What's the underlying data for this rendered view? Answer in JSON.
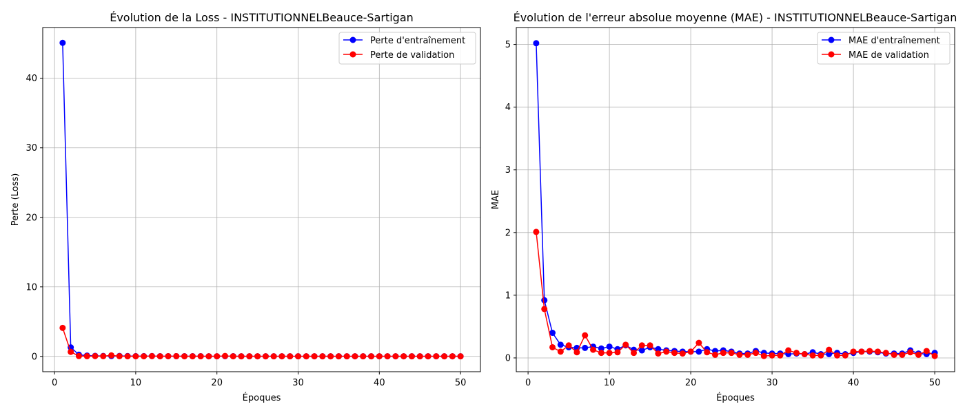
{
  "colors": {
    "train": "#0000ff",
    "val": "#ff0000",
    "grid": "#b0b0b0",
    "axis": "#000000"
  },
  "chart_data": [
    {
      "type": "line",
      "title": "Évolution de la Loss - INSTITUTIONNELBeauce-Sartigan",
      "xlabel": "Époques",
      "ylabel": "Perte (Loss)",
      "xlim": [
        -1.45,
        52.45
      ],
      "ylim": [
        -2.2,
        47.3
      ],
      "xticks": [
        0,
        10,
        20,
        30,
        40,
        50
      ],
      "yticks": [
        0,
        10,
        20,
        30,
        40
      ],
      "grid": true,
      "legend_position": "top-right",
      "x": [
        1,
        2,
        3,
        4,
        5,
        6,
        7,
        8,
        9,
        10,
        11,
        12,
        13,
        14,
        15,
        16,
        17,
        18,
        19,
        20,
        21,
        22,
        23,
        24,
        25,
        26,
        27,
        28,
        29,
        30,
        31,
        32,
        33,
        34,
        35,
        36,
        37,
        38,
        39,
        40,
        41,
        42,
        43,
        44,
        45,
        46,
        47,
        48,
        49,
        50
      ],
      "series": [
        {
          "name": "Perte d'entraînement",
          "color": "#0000ff",
          "values": [
            45.1,
            1.3,
            0.25,
            0.12,
            0.08,
            0.06,
            0.05,
            0.07,
            0.05,
            0.04,
            0.04,
            0.05,
            0.03,
            0.03,
            0.03,
            0.03,
            0.03,
            0.03,
            0.02,
            0.02,
            0.03,
            0.03,
            0.02,
            0.02,
            0.02,
            0.02,
            0.02,
            0.02,
            0.02,
            0.02,
            0.02,
            0.02,
            0.02,
            0.02,
            0.02,
            0.02,
            0.02,
            0.02,
            0.02,
            0.02,
            0.02,
            0.02,
            0.02,
            0.02,
            0.02,
            0.02,
            0.02,
            0.02,
            0.02,
            0.02
          ]
        },
        {
          "name": "Perte de validation",
          "color": "#ff0000",
          "values": [
            4.1,
            0.65,
            0.05,
            0.03,
            0.04,
            0.03,
            0.15,
            0.03,
            0.02,
            0.02,
            0.02,
            0.04,
            0.02,
            0.03,
            0.03,
            0.02,
            0.02,
            0.02,
            0.02,
            0.02,
            0.06,
            0.02,
            0.01,
            0.02,
            0.02,
            0.01,
            0.01,
            0.02,
            0.01,
            0.01,
            0.01,
            0.02,
            0.01,
            0.01,
            0.01,
            0.01,
            0.02,
            0.01,
            0.01,
            0.02,
            0.02,
            0.02,
            0.02,
            0.01,
            0.01,
            0.01,
            0.02,
            0.01,
            0.02,
            0.01
          ]
        }
      ]
    },
    {
      "type": "line",
      "title": "Évolution de l'erreur absolue moyenne (MAE) - INSTITUTIONNELBeauce-Sartigan",
      "xlabel": "Époques",
      "ylabel": "MAE",
      "xlim": [
        -1.45,
        52.45
      ],
      "ylim": [
        -0.22,
        5.27
      ],
      "xticks": [
        0,
        10,
        20,
        30,
        40,
        50
      ],
      "yticks": [
        0,
        1,
        2,
        3,
        4,
        5
      ],
      "grid": true,
      "legend_position": "top-right",
      "x": [
        1,
        2,
        3,
        4,
        5,
        6,
        7,
        8,
        9,
        10,
        11,
        12,
        13,
        14,
        15,
        16,
        17,
        18,
        19,
        20,
        21,
        22,
        23,
        24,
        25,
        26,
        27,
        28,
        29,
        30,
        31,
        32,
        33,
        34,
        35,
        36,
        37,
        38,
        39,
        40,
        41,
        42,
        43,
        44,
        45,
        46,
        47,
        48,
        49,
        50
      ],
      "series": [
        {
          "name": "MAE d'entraînement",
          "color": "#0000ff",
          "values": [
            5.02,
            0.92,
            0.4,
            0.21,
            0.17,
            0.16,
            0.16,
            0.18,
            0.15,
            0.18,
            0.14,
            0.2,
            0.13,
            0.12,
            0.17,
            0.14,
            0.12,
            0.11,
            0.1,
            0.1,
            0.1,
            0.14,
            0.11,
            0.12,
            0.1,
            0.07,
            0.07,
            0.11,
            0.08,
            0.07,
            0.07,
            0.06,
            0.07,
            0.06,
            0.09,
            0.06,
            0.06,
            0.08,
            0.06,
            0.08,
            0.1,
            0.1,
            0.09,
            0.07,
            0.07,
            0.07,
            0.12,
            0.07,
            0.06,
            0.08
          ]
        },
        {
          "name": "MAE de validation",
          "color": "#ff0000",
          "values": [
            2.01,
            0.78,
            0.17,
            0.1,
            0.2,
            0.09,
            0.36,
            0.13,
            0.08,
            0.08,
            0.09,
            0.21,
            0.08,
            0.2,
            0.2,
            0.07,
            0.1,
            0.08,
            0.07,
            0.1,
            0.24,
            0.09,
            0.05,
            0.08,
            0.08,
            0.05,
            0.05,
            0.08,
            0.03,
            0.04,
            0.04,
            0.12,
            0.08,
            0.06,
            0.04,
            0.04,
            0.13,
            0.04,
            0.04,
            0.1,
            0.1,
            0.11,
            0.1,
            0.08,
            0.05,
            0.05,
            0.09,
            0.05,
            0.11,
            0.03
          ]
        }
      ]
    }
  ]
}
